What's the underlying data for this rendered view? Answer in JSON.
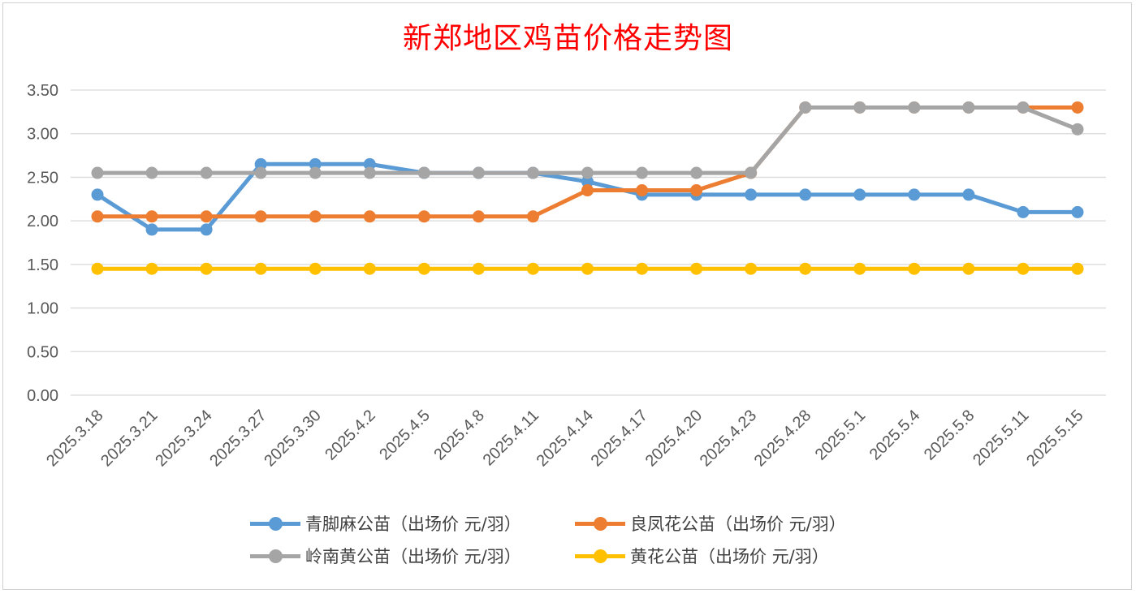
{
  "chart_data": {
    "type": "line",
    "title": "新郑地区鸡苗价格走势图",
    "xlabel": "",
    "ylabel": "",
    "ylim": [
      0,
      3.5
    ],
    "yticks": [
      "0.00",
      "0.50",
      "1.00",
      "1.50",
      "2.00",
      "2.50",
      "3.00",
      "3.50"
    ],
    "grid": "horizontal",
    "legend_position": "bottom",
    "categories": [
      "2025.3.18",
      "2025.3.21",
      "2025.3.24",
      "2025.3.27",
      "2025.3.30",
      "2025.4.2",
      "2025.4.5",
      "2025.4.8",
      "2025.4.11",
      "2025.4.14",
      "2025.4.17",
      "2025.4.20",
      "2025.4.23",
      "2025.4.28",
      "2025.5.1",
      "2025.5.4",
      "2025.5.8",
      "2025.5.11",
      "2025.5.15"
    ],
    "series": [
      {
        "name": "青脚麻公苗（出场价 元/羽）",
        "color": "#5b9bd5",
        "values": [
          2.3,
          1.9,
          1.9,
          2.65,
          2.65,
          2.65,
          2.55,
          2.55,
          2.55,
          2.45,
          2.3,
          2.3,
          2.3,
          2.3,
          2.3,
          2.3,
          2.3,
          2.1,
          2.1
        ]
      },
      {
        "name": "良凤花公苗（出场价 元/羽）",
        "color": "#ed7d31",
        "values": [
          2.05,
          2.05,
          2.05,
          2.05,
          2.05,
          2.05,
          2.05,
          2.05,
          2.05,
          2.35,
          2.35,
          2.35,
          2.55,
          3.3,
          3.3,
          3.3,
          3.3,
          3.3,
          3.3
        ]
      },
      {
        "name": "岭南黄公苗（出场价 元/羽）",
        "color": "#a5a5a5",
        "values": [
          2.55,
          2.55,
          2.55,
          2.55,
          2.55,
          2.55,
          2.55,
          2.55,
          2.55,
          2.55,
          2.55,
          2.55,
          2.55,
          3.3,
          3.3,
          3.3,
          3.3,
          3.3,
          3.05
        ]
      },
      {
        "name": "黄花公苗（出场价 元/羽）",
        "color": "#ffc000",
        "values": [
          1.45,
          1.45,
          1.45,
          1.45,
          1.45,
          1.45,
          1.45,
          1.45,
          1.45,
          1.45,
          1.45,
          1.45,
          1.45,
          1.45,
          1.45,
          1.45,
          1.45,
          1.45,
          1.45
        ]
      }
    ]
  }
}
